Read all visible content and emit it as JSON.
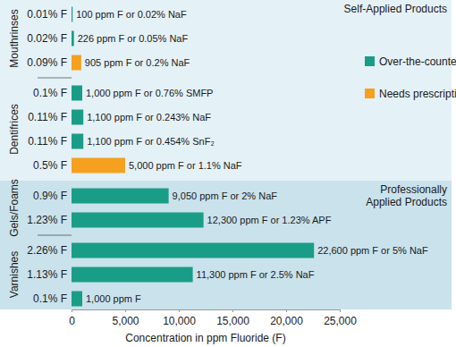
{
  "chart_data": {
    "type": "bar",
    "orientation": "horizontal",
    "categories": [
      "0.01% F",
      "0.02% F",
      "0.09% F",
      "0.1% F",
      "0.11% F",
      "0.11% F",
      "0.5% F",
      "0.9% F",
      "1.23% F",
      "2.26% F",
      "1.13% F",
      "0.1% F"
    ],
    "groups": [
      {
        "label": "Mouthrinses",
        "count": 3
      },
      {
        "label": "Dentifrices",
        "count": 4
      },
      {
        "label": "Gels/Foams",
        "count": 2
      },
      {
        "label": "Varnishes",
        "count": 3
      }
    ],
    "sections": [
      {
        "label": "Self-Applied Products",
        "count": 7
      },
      {
        "label": "Professionally Applied Products",
        "count": 5
      }
    ],
    "series": [
      {
        "name": "Over-the-counter",
        "color": "#1a9d87",
        "values": [
          100,
          226,
          null,
          1000,
          1100,
          1100,
          null,
          9050,
          12300,
          22600,
          11300,
          1000
        ],
        "value_labels": [
          "100 ppm F or 0.02% NaF",
          "226 ppm F or 0.05% NaF",
          null,
          "1,000 ppm F or 0.76% SMFP",
          "1,100 ppm F or 0.243% NaF",
          "1,100 ppm F or 0.454% SnF₂",
          null,
          "9,050 ppm F or 2% NaF",
          "12,300 ppm F or 1.23% APF",
          "22,600 ppm F or 5% NaF",
          "11,300 ppm F or 2.5% NaF",
          "1,000 ppm F"
        ]
      },
      {
        "name": "Needs prescription",
        "color": "#f5a01f",
        "values": [
          null,
          null,
          905,
          null,
          null,
          null,
          5000,
          null,
          null,
          null,
          null,
          null
        ],
        "value_labels": [
          null,
          null,
          "905 ppm F or 0.2% NaF",
          null,
          null,
          null,
          "5,000 ppm F or 1.1% NaF",
          null,
          null,
          null,
          null,
          null
        ]
      }
    ],
    "xlabel": "Concentration in ppm Fluoride (F)",
    "xlim": [
      0,
      25000
    ],
    "xticks": [
      0,
      {
        "value": 5000,
        "label": "5,000"
      },
      {
        "value": 10000,
        "label": "10,000"
      },
      {
        "value": 15000,
        "label": "15,000"
      },
      {
        "value": 20000,
        "label": "20,000"
      },
      {
        "value": 25000,
        "label": "25,000"
      }
    ],
    "grid": false,
    "legend": "right",
    "data_labels": true
  }
}
